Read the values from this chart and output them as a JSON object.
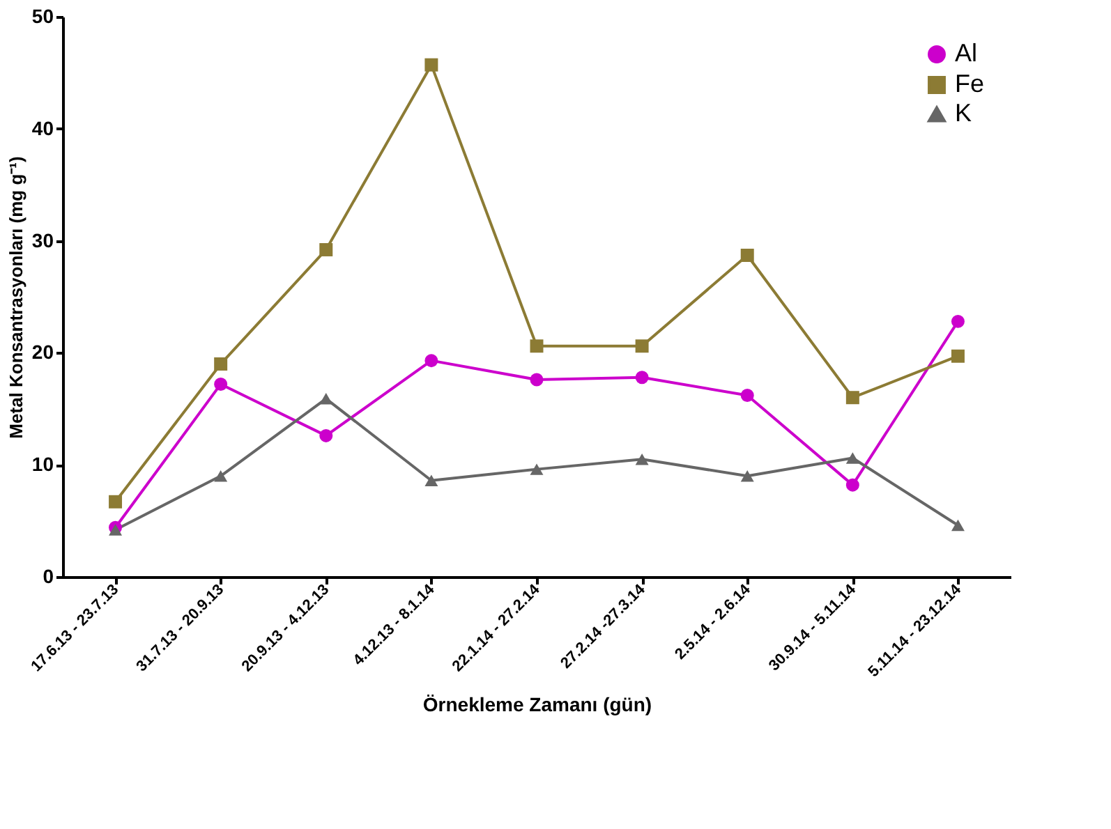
{
  "chart_data": {
    "type": "line",
    "xlabel": "Örnekleme Zamanı (gün)",
    "ylabel": "Metal Konsantrasyonları (mg g⁻¹)",
    "categories": [
      "17.6.13 - 23.7.13",
      "31.7.13 - 20.9.13",
      "20.9.13 - 4.12.13",
      "4.12.13 - 8.1.14",
      "22.1.14 - 27.2.14",
      "27.2.14 -27.3.14",
      "2.5.14 - 2.6.14",
      "30.9.14 - 5.11.14",
      "5.11.14 - 23.12.14"
    ],
    "series": [
      {
        "name": "Al",
        "color": "#cc00cc",
        "marker": "circle",
        "values": [
          4.4,
          17.2,
          12.6,
          19.3,
          17.6,
          17.8,
          16.2,
          8.2,
          22.8
        ]
      },
      {
        "name": "Fe",
        "color": "#8c7b34",
        "marker": "square",
        "values": [
          6.7,
          19.0,
          29.2,
          45.7,
          20.6,
          20.6,
          28.7,
          16.0,
          19.7
        ]
      },
      {
        "name": "K",
        "color": "#666666",
        "marker": "triangle",
        "values": [
          4.2,
          9.0,
          15.9,
          8.6,
          9.6,
          10.5,
          9.0,
          10.6,
          4.6
        ]
      }
    ],
    "ylim": [
      0,
      50
    ],
    "yticks": [
      0,
      10,
      20,
      30,
      40,
      50
    ],
    "grid": false,
    "legend": "top right",
    "line_style": "solid"
  }
}
